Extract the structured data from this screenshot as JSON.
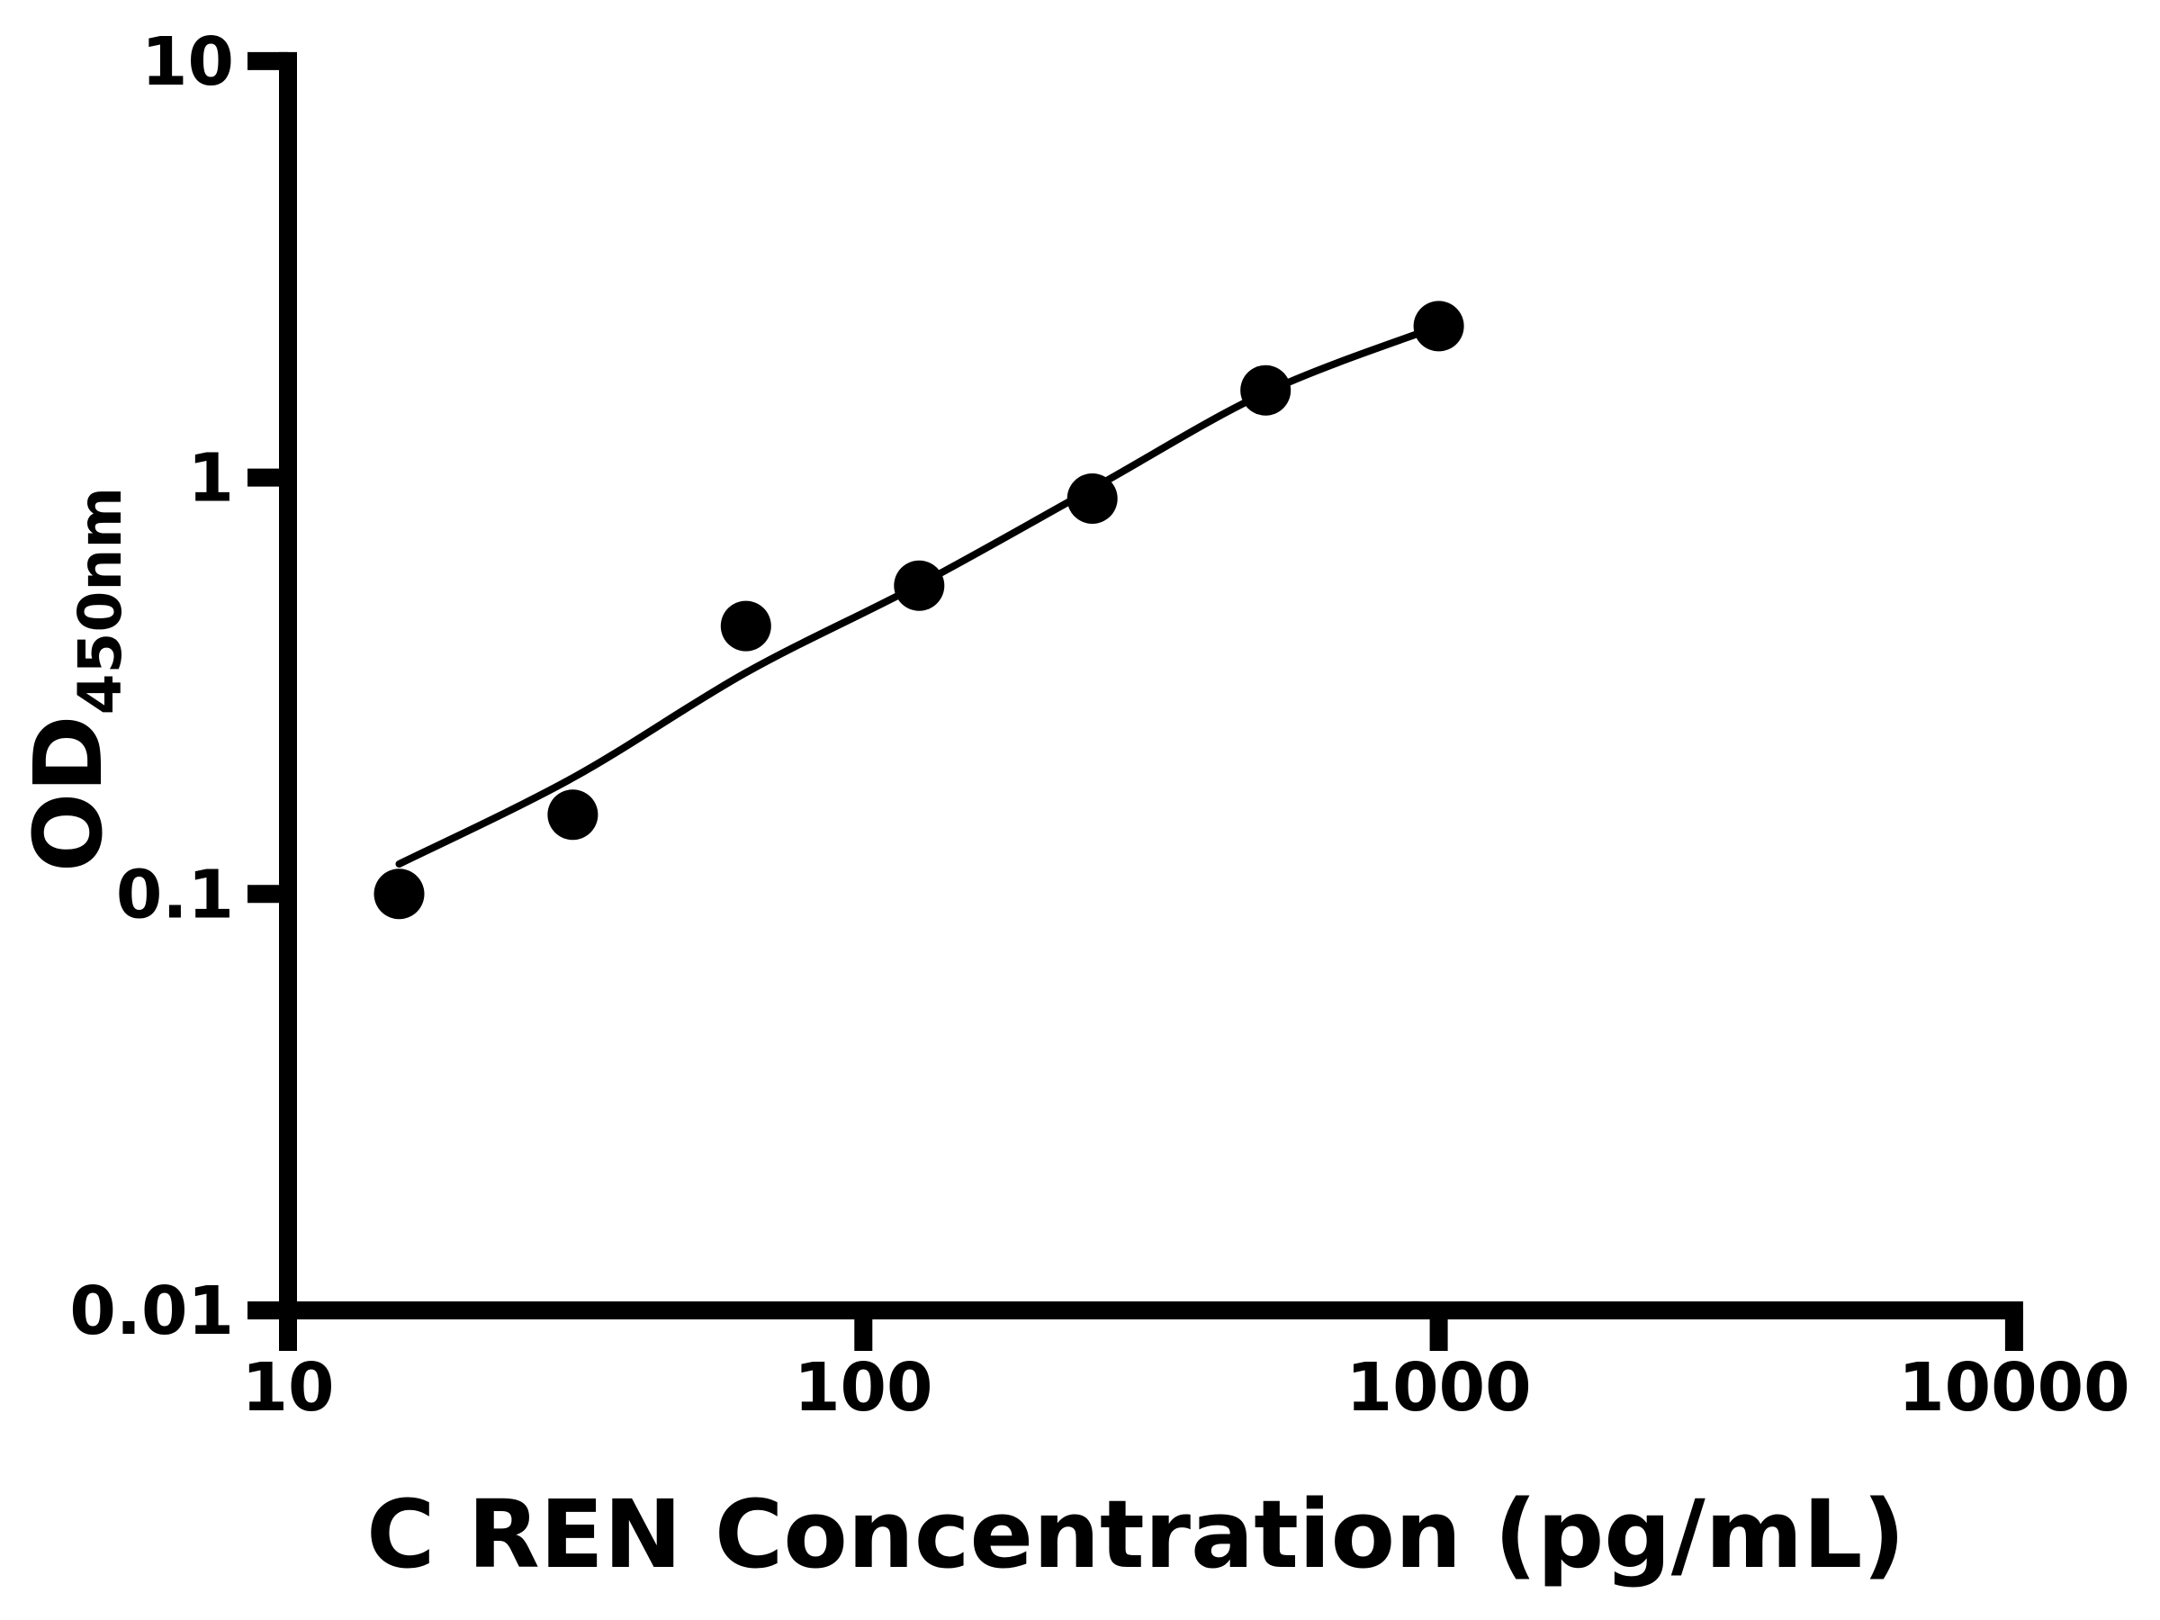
{
  "figure": {
    "background_color": "#ffffff",
    "ink_color": "#000000"
  },
  "chart_data": {
    "type": "scatter",
    "title": "",
    "xlabel": "C REN Concentration (pg/mL)",
    "ylabel_main": "OD",
    "ylabel_sub": "450nm",
    "x_scale": "log",
    "y_scale": "log",
    "xlim": [
      10,
      10000
    ],
    "ylim": [
      0.01,
      10
    ],
    "x_ticks": [
      10,
      100,
      1000,
      10000
    ],
    "x_tick_labels": [
      "10",
      "100",
      "1000",
      "10000"
    ],
    "y_ticks": [
      10,
      1,
      0.1,
      0.01
    ],
    "y_tick_labels": [
      "10",
      "1",
      "0.1",
      "0.01"
    ],
    "grid": false,
    "legend": null,
    "series": [
      {
        "name": "standard-points",
        "kind": "scatter",
        "marker": "filled-circle",
        "color": "#000000",
        "points": [
          {
            "x": 15.6,
            "y": 0.1
          },
          {
            "x": 31.25,
            "y": 0.155
          },
          {
            "x": 62.5,
            "y": 0.44
          },
          {
            "x": 125,
            "y": 0.55
          },
          {
            "x": 250,
            "y": 0.89
          },
          {
            "x": 500,
            "y": 1.62
          },
          {
            "x": 1000,
            "y": 2.31
          }
        ]
      },
      {
        "name": "fitted-curve",
        "kind": "line",
        "color": "#000000",
        "points": [
          {
            "x": 15.6,
            "y": 0.118
          },
          {
            "x": 31.25,
            "y": 0.19
          },
          {
            "x": 62.5,
            "y": 0.34
          },
          {
            "x": 125,
            "y": 0.553
          },
          {
            "x": 250,
            "y": 0.94
          },
          {
            "x": 500,
            "y": 1.6
          },
          {
            "x": 1000,
            "y": 2.31
          }
        ]
      }
    ]
  }
}
